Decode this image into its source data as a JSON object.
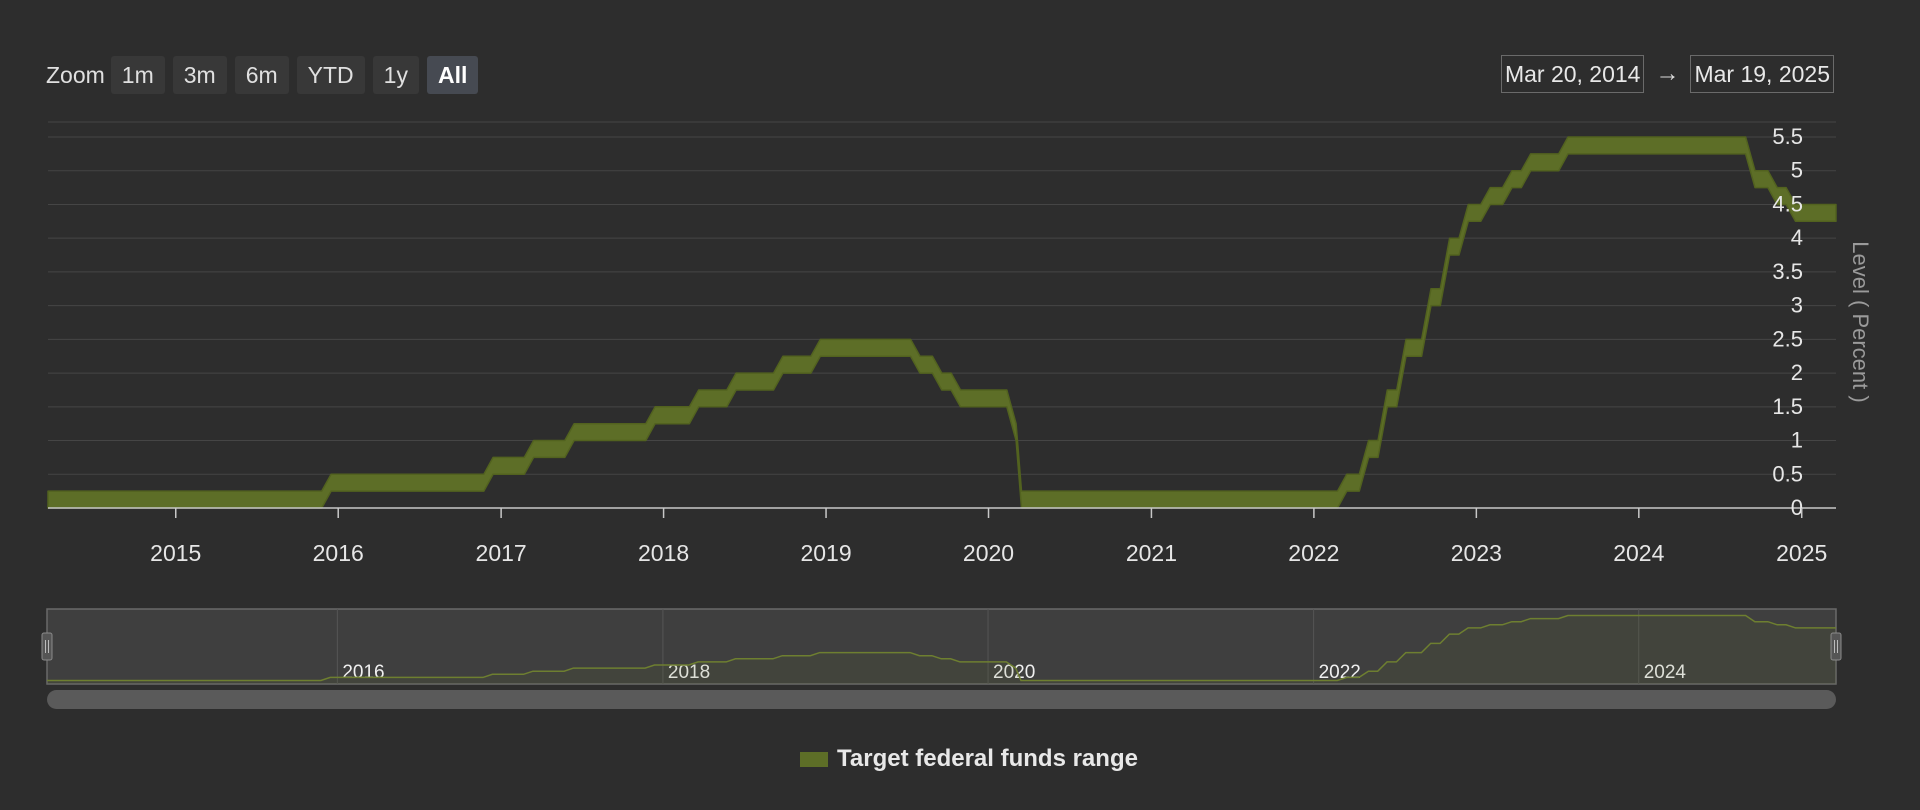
{
  "zoom": {
    "label": "Zoom",
    "buttons": [
      "1m",
      "3m",
      "6m",
      "YTD",
      "1y",
      "All"
    ],
    "active": "All"
  },
  "range": {
    "from": "Mar 20, 2014",
    "to": "Mar 19, 2025",
    "arrow": "→"
  },
  "legend": {
    "label": "Target federal funds range",
    "color": "#5d6e27"
  },
  "colors": {
    "series": "#5d6e27",
    "background": "#2d2d2d",
    "grid": "#454545",
    "navigator_mask": "#3f3f3f"
  },
  "chart_data": {
    "type": "area",
    "subtype": "range band",
    "ylabel": "Level ( Percent )",
    "yaxis_side": "right",
    "ylim": [
      0,
      5.5
    ],
    "yticks": [
      "0",
      "0.5",
      "1",
      "1.5",
      "2",
      "2.5",
      "3",
      "3.5",
      "4",
      "4.5",
      "5",
      "5.5"
    ],
    "xlim": [
      "2014-03-20",
      "2025-03-19"
    ],
    "xticks": [
      "2015",
      "2016",
      "2017",
      "2018",
      "2019",
      "2020",
      "2021",
      "2022",
      "2023",
      "2024",
      "2025"
    ],
    "grid": true,
    "legend_position": "bottom-center",
    "series": [
      {
        "name": "Target federal funds range",
        "columns": [
          "date",
          "low",
          "high"
        ],
        "points": [
          [
            "2014-03-20",
            0,
            0.25
          ],
          [
            "2015-12-16",
            0.25,
            0.5
          ],
          [
            "2016-12-14",
            0.5,
            0.75
          ],
          [
            "2017-03-15",
            0.75,
            1.0
          ],
          [
            "2017-06-14",
            1.0,
            1.25
          ],
          [
            "2017-12-13",
            1.25,
            1.5
          ],
          [
            "2018-03-21",
            1.5,
            1.75
          ],
          [
            "2018-06-13",
            1.75,
            2.0
          ],
          [
            "2018-09-26",
            2.0,
            2.25
          ],
          [
            "2018-12-19",
            2.25,
            2.5
          ],
          [
            "2019-07-31",
            2.0,
            2.25
          ],
          [
            "2019-09-18",
            1.75,
            2.0
          ],
          [
            "2019-10-30",
            1.5,
            1.75
          ],
          [
            "2020-03-03",
            1.0,
            1.25
          ],
          [
            "2020-03-15",
            0,
            0.25
          ],
          [
            "2022-03-16",
            0.25,
            0.5
          ],
          [
            "2022-05-04",
            0.75,
            1.0
          ],
          [
            "2022-06-15",
            1.5,
            1.75
          ],
          [
            "2022-07-27",
            2.25,
            2.5
          ],
          [
            "2022-09-21",
            3.0,
            3.25
          ],
          [
            "2022-11-02",
            3.75,
            4.0
          ],
          [
            "2022-12-14",
            4.25,
            4.5
          ],
          [
            "2023-02-01",
            4.5,
            4.75
          ],
          [
            "2023-03-22",
            4.75,
            5.0
          ],
          [
            "2023-05-03",
            5.0,
            5.25
          ],
          [
            "2023-07-26",
            5.25,
            5.5
          ],
          [
            "2024-09-18",
            4.75,
            5.0
          ],
          [
            "2024-11-07",
            4.5,
            4.75
          ],
          [
            "2024-12-18",
            4.25,
            4.5
          ],
          [
            "2025-03-19",
            4.25,
            4.5
          ]
        ]
      }
    ]
  },
  "navigator": {
    "labels": [
      "2016",
      "2018",
      "2020",
      "2022",
      "2024"
    ]
  }
}
